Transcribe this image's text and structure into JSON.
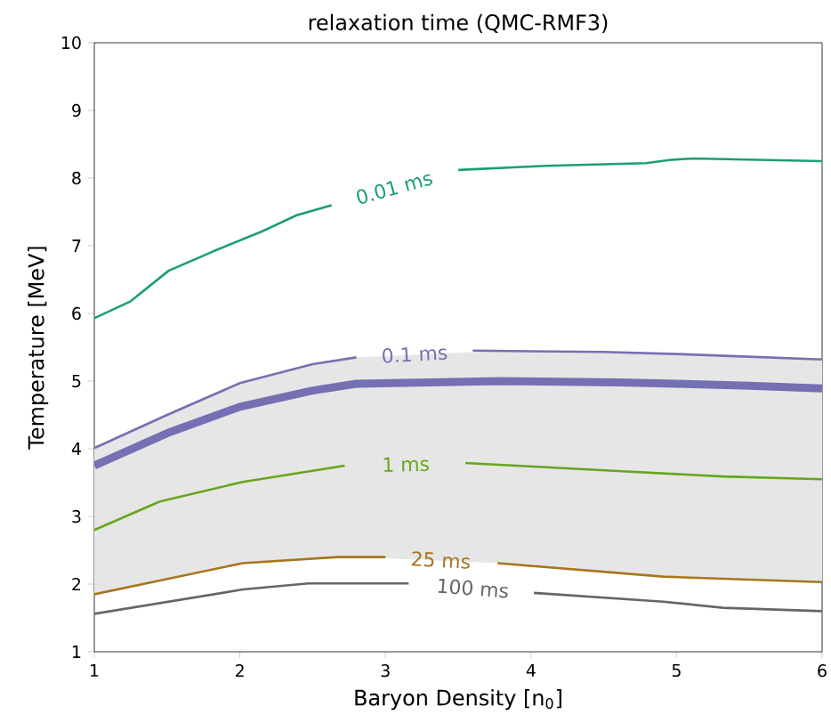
{
  "chart_data": {
    "type": "line",
    "title": "relaxation time (QMC-RMF3)",
    "xlabel": "Baryon Density [n$_{0}$]",
    "ylabel": "Temperature [MeV]",
    "xlim": [
      1,
      6
    ],
    "ylim": [
      1,
      10
    ],
    "xticks": [
      1,
      2,
      3,
      4,
      5,
      6
    ],
    "yticks": [
      1,
      2,
      3,
      4,
      5,
      6,
      7,
      8,
      9,
      10
    ],
    "grid": false,
    "marker": "none",
    "line_style": "solid",
    "series": [
      {
        "name": "0.01 ms",
        "color": "#1b9e77",
        "x": [
          1,
          1.25,
          1.51,
          1.82,
          2.15,
          2.39,
          2.63,
          3.06,
          3.5,
          4.1,
          4.79,
          4.96,
          5.12,
          6
        ],
        "values": [
          5.93,
          6.18,
          6.63,
          6.92,
          7.21,
          7.45,
          7.6,
          null,
          8.12,
          8.18,
          8.22,
          8.27,
          8.29,
          8.25
        ]
      },
      {
        "name": "0.1 ms",
        "color": "#7570b3",
        "x": [
          1,
          1.5,
          2,
          2.5,
          2.8,
          3.2,
          3.6,
          4,
          4.5,
          5,
          5.5,
          6
        ],
        "values": [
          4.01,
          4.5,
          4.97,
          5.25,
          5.35,
          null,
          5.45,
          5.44,
          5.43,
          5.4,
          5.36,
          5.32
        ]
      },
      {
        "color": "#7570b3",
        "x": [
          1,
          1.5,
          2,
          2.5,
          2.8,
          3.8,
          4.2,
          4.6,
          5,
          5.5,
          6
        ],
        "values": [
          3.75,
          4.23,
          4.62,
          4.86,
          4.96,
          5.0,
          4.99,
          4.98,
          4.96,
          4.93,
          4.89
        ],
        "lower": [
          1.85,
          2.08,
          2.31,
          2.39,
          2.4,
          2.31,
          2.24,
          2.17,
          2.1,
          2.06,
          2.03
        ],
        "upper": [
          4.01,
          4.5,
          4.97,
          5.25,
          5.35,
          5.45,
          5.44,
          5.43,
          5.4,
          5.36,
          5.32
        ]
      },
      {
        "name": "1 ms",
        "color": "#66a61e",
        "x": [
          1,
          1.45,
          2.02,
          2.72,
          3.14,
          3.55,
          4.51,
          5.32,
          6
        ],
        "values": [
          2.8,
          3.22,
          3.51,
          3.75,
          null,
          3.79,
          3.68,
          3.59,
          3.55
        ]
      },
      {
        "name": "25 ms",
        "color": "#a6761d",
        "x": [
          1,
          2.02,
          2.67,
          3.0,
          3.38,
          3.77,
          4.91,
          6
        ],
        "values": [
          1.85,
          2.31,
          2.4,
          2.4,
          null,
          2.31,
          2.11,
          2.03
        ]
      },
      {
        "name": "100 ms",
        "color": "#666666",
        "x": [
          1,
          2.02,
          2.47,
          3.16,
          3.6,
          4.02,
          4.91,
          5.32,
          6
        ],
        "values": [
          1.56,
          1.92,
          2.01,
          2.01,
          null,
          1.87,
          1.74,
          1.65,
          1.6
        ]
      }
    ]
  }
}
